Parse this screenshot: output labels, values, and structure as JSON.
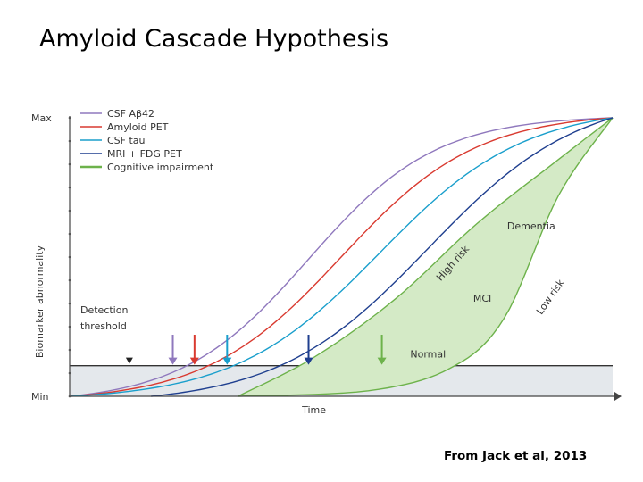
{
  "slide": {
    "title": "Amyloid Cascade Hypothesis",
    "citation": "From Jack et al, 2013"
  },
  "chart_data": {
    "type": "line",
    "title": "",
    "xlabel": "Time",
    "ylabel": "Biomarker abnormality",
    "y_ticks": [
      "Max",
      "Min"
    ],
    "xlim": [
      0,
      100
    ],
    "ylim": [
      0,
      100
    ],
    "detection_threshold_label": "Detection threshold",
    "detection_threshold_y": 11,
    "threshold_band_color": "#e4e8ec",
    "legend_position": "top-left",
    "series": [
      {
        "name": "CSF Aβ42",
        "color": "#8f78bd",
        "x0": 0,
        "y0": 0,
        "midpoint": 44,
        "steepness": 0.085
      },
      {
        "name": "Amyloid PET",
        "color": "#d93a30",
        "x0": 0,
        "y0": 0,
        "midpoint": 50,
        "steepness": 0.08
      },
      {
        "name": "CSF tau",
        "color": "#1a9fcc",
        "x0": 0,
        "y0": 0,
        "midpoint": 57,
        "steepness": 0.075
      },
      {
        "name": "MRI + FDG PET",
        "color": "#1f3f8f",
        "x0": 15,
        "y0": 0,
        "midpoint": 66,
        "steepness": 0.072
      },
      {
        "name": "Cognitive impairment",
        "color": "#6db24b",
        "x0": 0,
        "y0": 0,
        "midpoint": 0,
        "steepness": 0
      }
    ],
    "cognitive_impairment_band": {
      "fill": "#d4eac6",
      "start_x": 31,
      "high_risk": [
        [
          31,
          0
        ],
        [
          45,
          14
        ],
        [
          60,
          35
        ],
        [
          75,
          62
        ],
        [
          90,
          85
        ],
        [
          100,
          100
        ]
      ],
      "low_risk": [
        [
          31,
          0
        ],
        [
          55,
          2
        ],
        [
          70,
          10
        ],
        [
          80,
          28
        ],
        [
          90,
          72
        ],
        [
          100,
          100
        ]
      ]
    },
    "arrows": [
      {
        "series": "CSF Aβ42",
        "x": 19,
        "color": "#8f78bd"
      },
      {
        "series": "Amyloid PET",
        "x": 23,
        "color": "#d93a30"
      },
      {
        "series": "CSF tau",
        "x": 29,
        "color": "#1a9fcc"
      },
      {
        "series": "MRI + FDG PET",
        "x": 44,
        "color": "#1f3f8f"
      },
      {
        "series": "Cognitive impairment",
        "x": 57.5,
        "color": "#6db24b"
      }
    ],
    "detection_marker_x": 11,
    "annotations": [
      {
        "text": "Dementia",
        "x": 85,
        "y": 60,
        "angle": 0
      },
      {
        "text": "High risk",
        "x": 71,
        "y": 47,
        "angle": -48
      },
      {
        "text": "MCI",
        "x": 76,
        "y": 34,
        "angle": 0
      },
      {
        "text": "Low risk",
        "x": 89,
        "y": 35,
        "angle": -55
      },
      {
        "text": "Normal",
        "x": 66,
        "y": 14,
        "angle": 0
      }
    ]
  }
}
